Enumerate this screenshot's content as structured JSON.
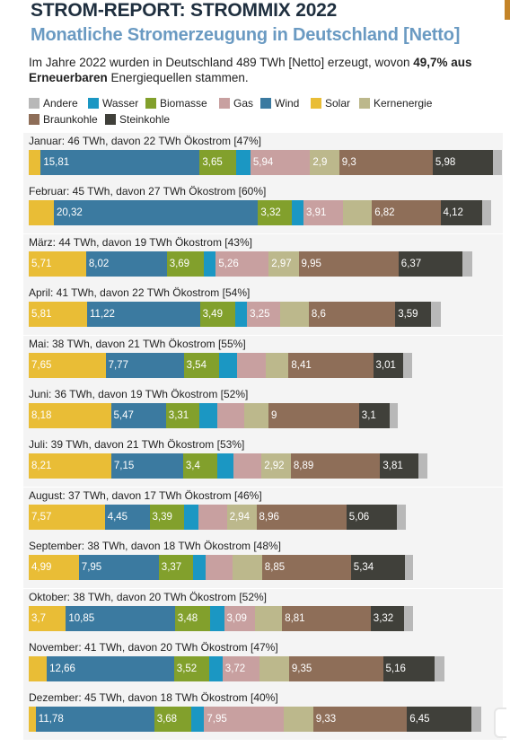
{
  "header": {
    "title": "STROM-REPORT: STROMMIX 2022",
    "subtitle": "Monatliche Stromerzeugung in Deutschland [Netto]"
  },
  "intro": {
    "text_before": "Im Jahre 2022 wurden in Deutschland 489 TWh [Netto] erzeugt, wovon ",
    "bold": "49,7% aus Erneuerbaren",
    "text_after": " Energiequellen stammen."
  },
  "legend": [
    {
      "key": "andere",
      "label": "Andere",
      "color": "#b8b8b8"
    },
    {
      "key": "wasser",
      "label": "Wasser",
      "color": "#1b97c3"
    },
    {
      "key": "biomasse",
      "label": "Biomasse",
      "color": "#82a02c"
    },
    {
      "key": "gas",
      "label": "Gas",
      "color": "#c8a0a0"
    },
    {
      "key": "wind",
      "label": "Wind",
      "color": "#3b7aa0"
    },
    {
      "key": "solar",
      "label": "Solar",
      "color": "#e9bd36"
    },
    {
      "key": "kernenergie",
      "label": "Kernenergie",
      "color": "#bcb88c"
    },
    {
      "key": "braunkohle",
      "label": "Braunkohle",
      "color": "#8e6e58"
    },
    {
      "key": "steinkohle",
      "label": "Steinkohle",
      "color": "#40403a"
    }
  ],
  "chart_data": {
    "type": "bar",
    "orientation": "horizontal-stacked",
    "unit": "TWh",
    "segment_order": [
      "solar",
      "wind",
      "biomasse",
      "wasser",
      "gas",
      "kernenergie",
      "braunkohle",
      "steinkohle",
      "andere"
    ],
    "months": [
      {
        "label": "Januar: 46 TWh, davon 22 TWh Ökostrom [47%]",
        "values": {
          "solar": 1.2,
          "wind": 15.81,
          "biomasse": 3.65,
          "wasser": 1.4,
          "gas": 5.94,
          "kernenergie": 2.9,
          "braunkohle": 9.3,
          "steinkohle": 5.98,
          "andere": 0.9
        },
        "labels": {
          "wind": "15,81",
          "biomasse": "3,65",
          "gas": "5,94",
          "kernenergie": "2,9",
          "braunkohle": "9,3",
          "steinkohle": "5,98"
        }
      },
      {
        "label": "Februar: 45 TWh, davon 27 TWh Ökostrom [60%]",
        "values": {
          "solar": 2.5,
          "wind": 20.32,
          "biomasse": 3.32,
          "wasser": 1.2,
          "gas": 3.91,
          "kernenergie": 2.9,
          "braunkohle": 6.82,
          "steinkohle": 4.12,
          "andere": 0.9
        },
        "labels": {
          "wind": "20,32",
          "biomasse": "3,32",
          "gas": "3,91",
          "braunkohle": "6,82",
          "steinkohle": "4,12"
        }
      },
      {
        "label": "März: 44 TWh, davon 19 TWh Ökostrom [43%]",
        "values": {
          "solar": 5.71,
          "wind": 8.02,
          "biomasse": 3.69,
          "wasser": 1.2,
          "gas": 5.26,
          "kernenergie": 2.97,
          "braunkohle": 9.95,
          "steinkohle": 6.37,
          "andere": 0.9
        },
        "labels": {
          "solar": "5,71",
          "wind": "8,02",
          "biomasse": "3,69",
          "gas": "5,26",
          "kernenergie": "2,97",
          "braunkohle": "9,95",
          "steinkohle": "6,37"
        }
      },
      {
        "label": "April: 41 TWh, davon 22 TWh Ökostrom [54%]",
        "values": {
          "solar": 5.81,
          "wind": 11.22,
          "biomasse": 3.49,
          "wasser": 1.2,
          "gas": 3.25,
          "kernenergie": 2.9,
          "braunkohle": 8.6,
          "steinkohle": 3.59,
          "andere": 0.9
        },
        "labels": {
          "solar": "5,81",
          "wind": "11,22",
          "biomasse": "3,49",
          "gas": "3,25",
          "braunkohle": "8,6",
          "steinkohle": "3,59"
        }
      },
      {
        "label": "Mai: 38 TWh, davon 21 TWh Ökostrom [55%]",
        "values": {
          "solar": 7.65,
          "wind": 7.77,
          "biomasse": 3.54,
          "wasser": 1.8,
          "gas": 2.8,
          "kernenergie": 2.3,
          "braunkohle": 8.41,
          "steinkohle": 3.01,
          "andere": 0.8
        },
        "labels": {
          "solar": "7,65",
          "wind": "7,77",
          "biomasse": "3,54",
          "braunkohle": "8,41",
          "steinkohle": "3,01"
        }
      },
      {
        "label": "Juni: 36 TWh, davon 19 TWh Ökostrom [52%]",
        "values": {
          "solar": 8.18,
          "wind": 5.47,
          "biomasse": 3.31,
          "wasser": 1.8,
          "gas": 2.7,
          "kernenergie": 2.4,
          "braunkohle": 9.0,
          "steinkohle": 3.1,
          "andere": 0.7
        },
        "labels": {
          "solar": "8,18",
          "wind": "5,47",
          "biomasse": "3,31",
          "braunkohle": "9",
          "steinkohle": "3,1"
        }
      },
      {
        "label": "Juli: 39 TWh, davon 21 TWh Ökostrom [53%]",
        "values": {
          "solar": 8.21,
          "wind": 7.15,
          "biomasse": 3.4,
          "wasser": 1.6,
          "gas": 2.8,
          "kernenergie": 2.92,
          "braunkohle": 8.89,
          "steinkohle": 3.81,
          "andere": 0.8
        },
        "labels": {
          "solar": "8,21",
          "wind": "7,15",
          "biomasse": "3,4",
          "kernenergie": "2,92",
          "braunkohle": "8,89",
          "steinkohle": "3,81"
        }
      },
      {
        "label": "August: 37 TWh, davon 17 TWh Ökostrom [46%]",
        "values": {
          "solar": 7.57,
          "wind": 4.45,
          "biomasse": 3.39,
          "wasser": 1.5,
          "gas": 2.8,
          "kernenergie": 2.94,
          "braunkohle": 8.96,
          "steinkohle": 5.06,
          "andere": 0.8
        },
        "labels": {
          "solar": "7,57",
          "wind": "4,45",
          "biomasse": "3,39",
          "kernenergie": "2,94",
          "braunkohle": "8,96",
          "steinkohle": "5,06"
        }
      },
      {
        "label": "September: 38 TWh, davon 18 TWh Ökostrom [48%]",
        "values": {
          "solar": 4.99,
          "wind": 7.95,
          "biomasse": 3.37,
          "wasser": 1.3,
          "gas": 2.7,
          "kernenergie": 2.9,
          "braunkohle": 8.85,
          "steinkohle": 5.34,
          "andere": 0.8
        },
        "labels": {
          "solar": "4,99",
          "wind": "7,95",
          "biomasse": "3,37",
          "braunkohle": "8,85",
          "steinkohle": "5,34"
        }
      },
      {
        "label": "Oktober: 38 TWh, davon 20 TWh Ökostrom [52%]",
        "values": {
          "solar": 3.7,
          "wind": 10.85,
          "biomasse": 3.48,
          "wasser": 1.4,
          "gas": 3.09,
          "kernenergie": 2.7,
          "braunkohle": 8.81,
          "steinkohle": 3.32,
          "andere": 0.8
        },
        "labels": {
          "solar": "3,7",
          "wind": "10,85",
          "biomasse": "3,48",
          "gas": "3,09",
          "braunkohle": "8,81",
          "steinkohle": "3,32"
        }
      },
      {
        "label": "November: 41 TWh, davon 20 TWh Ökostrom [47%]",
        "values": {
          "solar": 1.8,
          "wind": 12.66,
          "biomasse": 3.52,
          "wasser": 1.3,
          "gas": 3.72,
          "kernenergie": 2.9,
          "braunkohle": 9.35,
          "steinkohle": 5.16,
          "andere": 0.9
        },
        "labels": {
          "wind": "12,66",
          "biomasse": "3,52",
          "gas": "3,72",
          "braunkohle": "9,35",
          "steinkohle": "5,16"
        }
      },
      {
        "label": "Dezember: 45 TWh, davon 18 TWh Ökostrom [40%]",
        "values": {
          "solar": 0.7,
          "wind": 11.78,
          "biomasse": 3.68,
          "wasser": 1.3,
          "gas": 7.95,
          "kernenergie": 2.9,
          "braunkohle": 9.33,
          "steinkohle": 6.45,
          "andere": 0.9
        },
        "labels": {
          "wind": "11,78",
          "biomasse": "3,68",
          "gas": "7,95",
          "braunkohle": "9,33",
          "steinkohle": "6,45"
        }
      }
    ]
  }
}
